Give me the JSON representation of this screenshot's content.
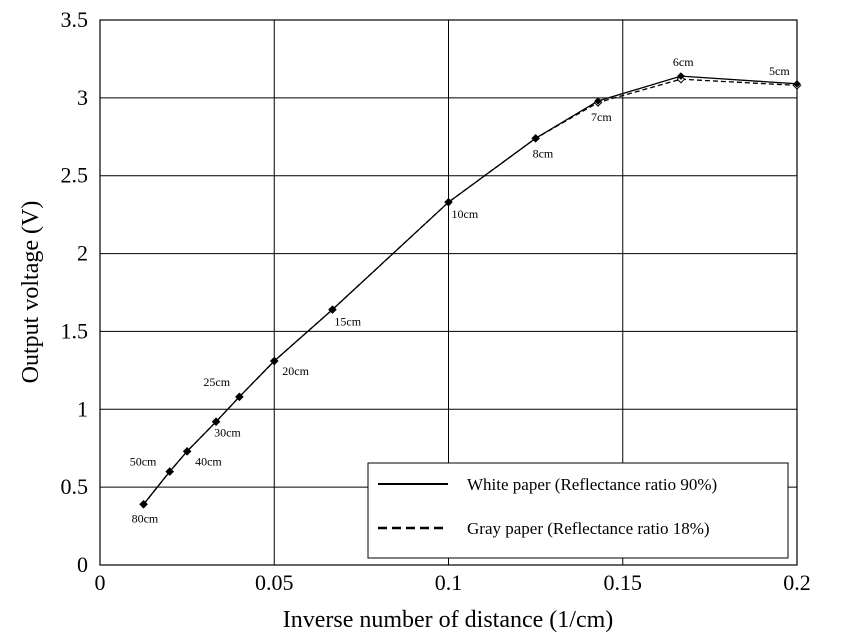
{
  "chart_data": {
    "type": "line",
    "xlabel": "Inverse number of distance (1/cm)",
    "ylabel": "Output voltage (V)",
    "xlim": [
      0,
      0.2
    ],
    "ylim": [
      0,
      3.5
    ],
    "x_ticks": [
      "0",
      "0.05",
      "0.1",
      "0.15",
      "0.2"
    ],
    "y_ticks": [
      "0",
      "0.5",
      "1",
      "1.5",
      "2",
      "2.5",
      "3",
      "3.5"
    ],
    "grid": true,
    "legend_position": "bottom-right",
    "series": [
      {
        "name": "White paper (Reflectance ratio 90%)",
        "line_style": "solid",
        "x": [
          0.0125,
          0.02,
          0.025,
          0.0333,
          0.04,
          0.05,
          0.0667,
          0.1,
          0.125,
          0.1429,
          0.1667,
          0.2
        ],
        "y": [
          0.39,
          0.6,
          0.73,
          0.92,
          1.08,
          1.31,
          1.64,
          2.33,
          2.74,
          2.98,
          3.14,
          3.09
        ]
      },
      {
        "name": "Gray paper (Reflectance ratio 18%)",
        "line_style": "dashed",
        "x": [
          0.0125,
          0.02,
          0.025,
          0.0333,
          0.04,
          0.05,
          0.0667,
          0.1,
          0.125,
          0.1429,
          0.1667,
          0.2
        ],
        "y": [
          0.39,
          0.6,
          0.73,
          0.92,
          1.08,
          1.31,
          1.64,
          2.33,
          2.74,
          2.97,
          3.12,
          3.08
        ]
      }
    ],
    "point_labels": [
      "80cm",
      "50cm",
      "40cm",
      "30cm",
      "25cm",
      "20cm",
      "15cm",
      "10cm",
      "8cm",
      "7cm",
      "6cm",
      "5cm"
    ],
    "colors": {
      "line": "#000000",
      "grid": "#000000",
      "background": "#ffffff"
    }
  }
}
